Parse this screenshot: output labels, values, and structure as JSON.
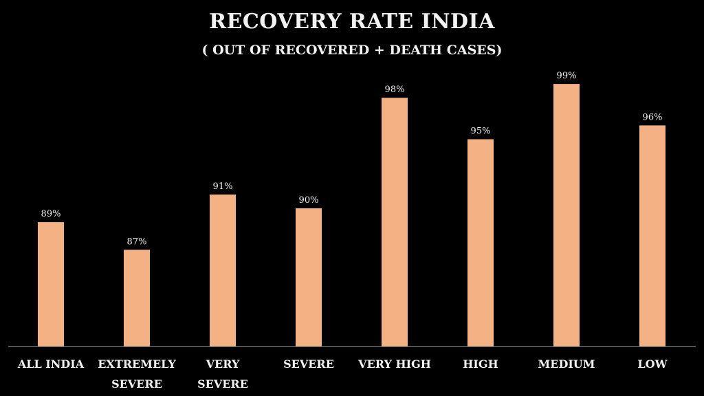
{
  "chart_data": {
    "type": "bar",
    "title": "RECOVERY RATE INDIA",
    "subtitle": "( OUT OF RECOVERED + DEATH CASES)",
    "categories": [
      [
        "ALL INDIA"
      ],
      [
        "EXTREMELY",
        "SEVERE"
      ],
      [
        "VERY",
        "SEVERE"
      ],
      [
        "SEVERE"
      ],
      [
        "VERY HIGH"
      ],
      [
        "HIGH"
      ],
      [
        "MEDIUM"
      ],
      [
        "LOW"
      ]
    ],
    "values": [
      89,
      87,
      91,
      90,
      98,
      95,
      99,
      96
    ],
    "data_labels": [
      "89%",
      "87%",
      "91%",
      "90%",
      "98%",
      "95%",
      "99%",
      "96%"
    ],
    "xlabel": "",
    "ylabel": "",
    "ylim": [
      80,
      100
    ],
    "grid": false,
    "legend": "none",
    "bar_color": "#F4B183",
    "axis_color": "#A6A6A6"
  }
}
